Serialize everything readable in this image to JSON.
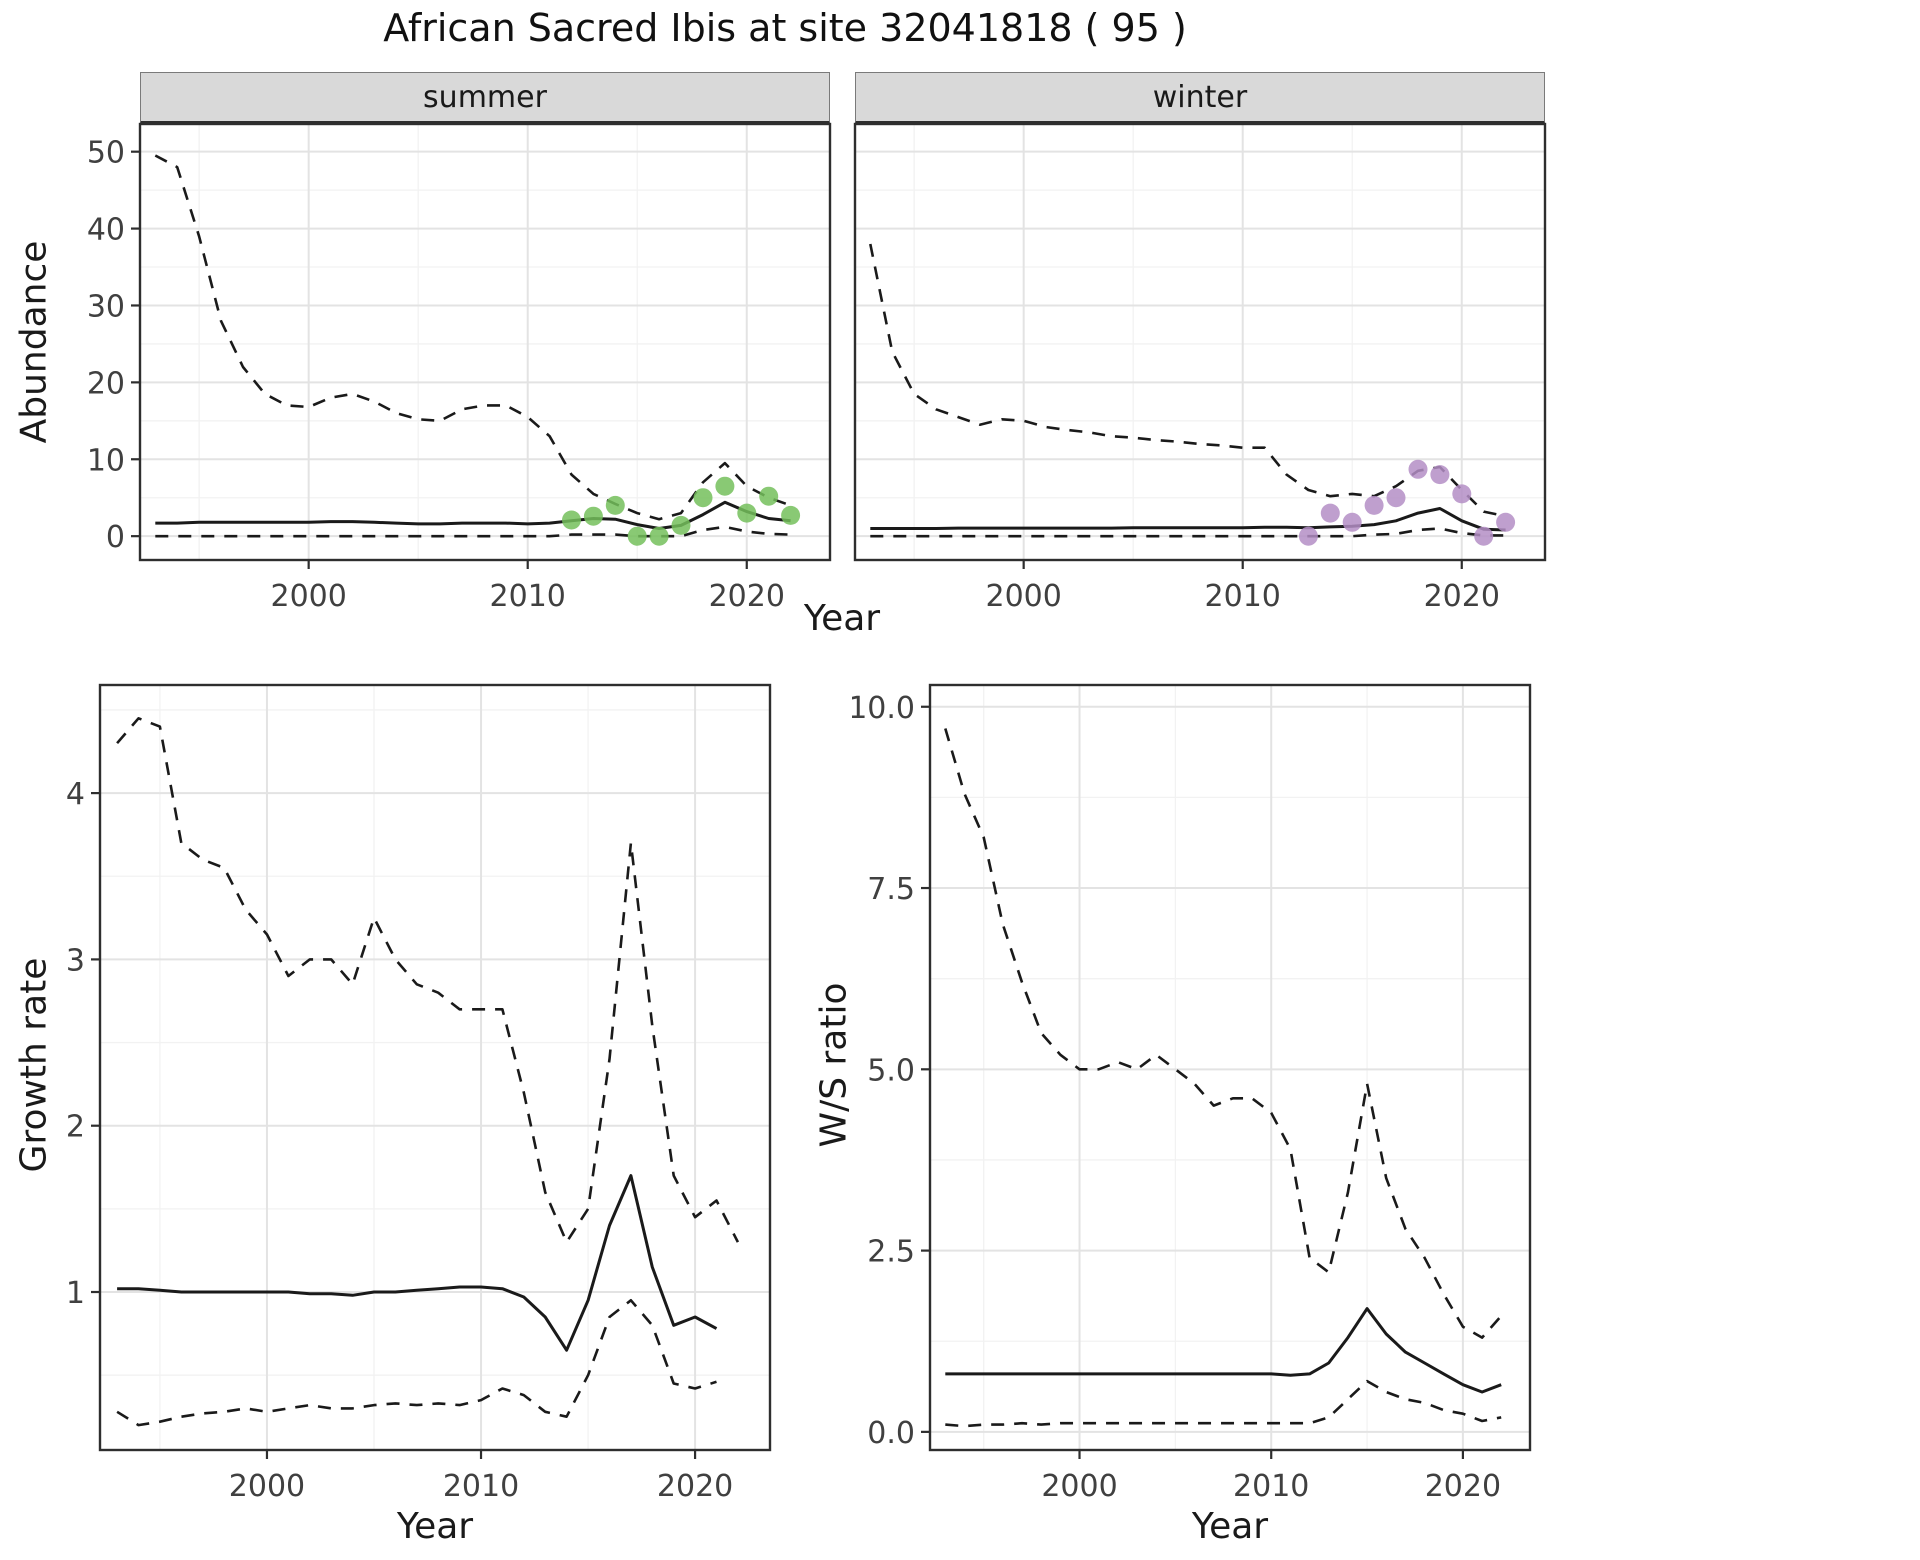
{
  "title": "African Sacred Ibis at site 32041818 ( 95 )",
  "facets": {
    "summer": "summer",
    "winter": "winter"
  },
  "labels": {
    "abundance": "Abundance",
    "year_top": "Year",
    "growth": "Growth rate",
    "ws": "W/S ratio",
    "year_growth": "Year",
    "year_ws": "Year"
  },
  "style": {
    "line": "#1a1a1a",
    "grid_major": "#e3e3e3",
    "grid_minor": "#f2f2f2",
    "panel_border": "#2e2e2e",
    "tick_text": "#404040",
    "strip_bg": "#d9d9d9",
    "summer_points": "#74bf5c",
    "winter_points": "#b48ec6"
  },
  "chart_data": [
    {
      "name": "abundance-summer",
      "type": "line",
      "facet": "summer",
      "xlabel": "Year",
      "ylabel": "Abundance",
      "xlim": [
        1992.3,
        2023.8
      ],
      "ylim": [
        -3.1,
        53.6
      ],
      "xticks": {
        "values": [
          2000,
          2010,
          2020
        ],
        "labels": [
          "2000",
          "2010",
          "2020"
        ],
        "minor": [
          1995,
          2005,
          2015
        ]
      },
      "yticks": {
        "values": [
          0,
          10,
          20,
          30,
          40,
          50
        ],
        "labels": [
          "0",
          "10",
          "20",
          "30",
          "40",
          "50"
        ],
        "minor": [
          5,
          15,
          25,
          35,
          45
        ],
        "show_labels": true
      },
      "series": [
        {
          "name": "upper-ci",
          "kind": "line",
          "dash": true,
          "x": [
            1993,
            1994,
            1995,
            1996,
            1997,
            1998,
            1999,
            2000,
            2001,
            2002,
            2003,
            2004,
            2005,
            2006,
            2007,
            2008,
            2009,
            2010,
            2011,
            2012,
            2013,
            2014,
            2015,
            2016,
            2017,
            2018,
            2019,
            2020,
            2021,
            2022
          ],
          "y": [
            49.5,
            48,
            39,
            28,
            22,
            18.5,
            17,
            16.8,
            18,
            18.5,
            17.5,
            16,
            15.2,
            15,
            16.5,
            17,
            17,
            15.5,
            13,
            8,
            5.5,
            4.2,
            3,
            2.2,
            3,
            7,
            9.5,
            6.5,
            5,
            4
          ]
        },
        {
          "name": "median",
          "kind": "line",
          "dash": false,
          "x": [
            1993,
            1994,
            1995,
            1996,
            1997,
            1998,
            1999,
            2000,
            2001,
            2002,
            2003,
            2004,
            2005,
            2006,
            2007,
            2008,
            2009,
            2010,
            2011,
            2012,
            2013,
            2014,
            2015,
            2016,
            2017,
            2018,
            2019,
            2020,
            2021,
            2022
          ],
          "y": [
            1.7,
            1.7,
            1.8,
            1.8,
            1.8,
            1.8,
            1.8,
            1.8,
            1.9,
            1.9,
            1.8,
            1.7,
            1.6,
            1.6,
            1.7,
            1.7,
            1.7,
            1.6,
            1.7,
            2.0,
            2.3,
            2.2,
            1.5,
            1.0,
            1.4,
            2.8,
            4.4,
            3.2,
            2.3,
            2.0
          ]
        },
        {
          "name": "lower-ci",
          "kind": "line",
          "dash": true,
          "x": [
            1993,
            1994,
            1995,
            1996,
            1997,
            1998,
            1999,
            2000,
            2001,
            2002,
            2003,
            2004,
            2005,
            2006,
            2007,
            2008,
            2009,
            2010,
            2011,
            2012,
            2013,
            2014,
            2015,
            2016,
            2017,
            2018,
            2019,
            2020,
            2021,
            2022
          ],
          "y": [
            0,
            0,
            0,
            0,
            0,
            0,
            0,
            0,
            0,
            0,
            0,
            0,
            0,
            0,
            0,
            0,
            0,
            0,
            0,
            0.2,
            0.2,
            0.2,
            0,
            0,
            0,
            0.8,
            1.2,
            0.6,
            0.3,
            0.2
          ]
        },
        {
          "name": "observed",
          "kind": "points",
          "color": "#74bf5c",
          "x": [
            2012,
            2013,
            2014,
            2015,
            2016,
            2017,
            2018,
            2019,
            2020,
            2021,
            2022
          ],
          "y": [
            2.1,
            2.6,
            4.0,
            0,
            0,
            1.4,
            5.0,
            6.5,
            3.0,
            5.2,
            2.7
          ]
        }
      ]
    },
    {
      "name": "abundance-winter",
      "type": "line",
      "facet": "winter",
      "xlabel": "Year",
      "ylabel": "Abundance",
      "xlim": [
        1992.3,
        2023.8
      ],
      "ylim": [
        -3.1,
        53.6
      ],
      "xticks": {
        "values": [
          2000,
          2010,
          2020
        ],
        "labels": [
          "2000",
          "2010",
          "2020"
        ],
        "minor": [
          1995,
          2005,
          2015
        ]
      },
      "yticks": {
        "values": [
          0,
          10,
          20,
          30,
          40,
          50
        ],
        "labels": [
          "0",
          "10",
          "20",
          "30",
          "40",
          "50"
        ],
        "minor": [
          5,
          15,
          25,
          35,
          45
        ],
        "show_labels": false
      },
      "series": [
        {
          "name": "upper-ci",
          "kind": "line",
          "dash": true,
          "x": [
            1993,
            1994,
            1995,
            1996,
            1997,
            1998,
            1999,
            2000,
            2001,
            2002,
            2003,
            2004,
            2005,
            2006,
            2007,
            2008,
            2009,
            2010,
            2011,
            2012,
            2013,
            2014,
            2015,
            2016,
            2017,
            2018,
            2019,
            2020,
            2021,
            2022
          ],
          "y": [
            38,
            24,
            18.5,
            16.5,
            15.5,
            14.5,
            15.2,
            15,
            14.2,
            13.8,
            13.5,
            13,
            12.8,
            12.5,
            12.3,
            12,
            11.8,
            11.5,
            11.5,
            8,
            6,
            5.2,
            5.5,
            5.2,
            6.5,
            8.5,
            9,
            6,
            3.2,
            2.6
          ]
        },
        {
          "name": "median",
          "kind": "line",
          "dash": false,
          "x": [
            1993,
            1994,
            1995,
            1996,
            1997,
            1998,
            1999,
            2000,
            2001,
            2002,
            2003,
            2004,
            2005,
            2006,
            2007,
            2008,
            2009,
            2010,
            2011,
            2012,
            2013,
            2014,
            2015,
            2016,
            2017,
            2018,
            2019,
            2020,
            2021,
            2022
          ],
          "y": [
            1.0,
            1.0,
            1.0,
            1.0,
            1.05,
            1.05,
            1.05,
            1.05,
            1.05,
            1.05,
            1.05,
            1.05,
            1.1,
            1.1,
            1.1,
            1.1,
            1.1,
            1.1,
            1.15,
            1.15,
            1.1,
            1.2,
            1.3,
            1.5,
            2.0,
            3.0,
            3.6,
            2.0,
            0.9,
            0.8
          ]
        },
        {
          "name": "lower-ci",
          "kind": "line",
          "dash": true,
          "x": [
            1993,
            1994,
            1995,
            1996,
            1997,
            1998,
            1999,
            2000,
            2001,
            2002,
            2003,
            2004,
            2005,
            2006,
            2007,
            2008,
            2009,
            2010,
            2011,
            2012,
            2013,
            2014,
            2015,
            2016,
            2017,
            2018,
            2019,
            2020,
            2021,
            2022
          ],
          "y": [
            0,
            0,
            0,
            0,
            0,
            0,
            0,
            0,
            0,
            0,
            0,
            0,
            0,
            0,
            0,
            0,
            0,
            0,
            0,
            0,
            0,
            0,
            0,
            0.2,
            0.3,
            0.8,
            1.0,
            0.4,
            0.1,
            0.1
          ]
        },
        {
          "name": "observed",
          "kind": "points",
          "color": "#b48ec6",
          "x": [
            2013,
            2014,
            2015,
            2016,
            2017,
            2018,
            2019,
            2020,
            2021,
            2022
          ],
          "y": [
            0,
            3.0,
            1.8,
            4.0,
            5.0,
            8.7,
            8.0,
            5.5,
            0,
            1.8
          ]
        }
      ]
    },
    {
      "name": "growth-rate",
      "type": "line",
      "xlabel": "Year",
      "ylabel": "Growth rate",
      "xlim": [
        1992.2,
        2023.5
      ],
      "ylim": [
        0.05,
        4.65
      ],
      "xticks": {
        "values": [
          2000,
          2010,
          2020
        ],
        "labels": [
          "2000",
          "2010",
          "2020"
        ],
        "minor": [
          1995,
          2005,
          2015
        ]
      },
      "yticks": {
        "values": [
          1,
          2,
          3,
          4
        ],
        "labels": [
          "1",
          "2",
          "3",
          "4"
        ],
        "minor": [
          0.5,
          1.5,
          2.5,
          3.5,
          4.5
        ],
        "show_labels": true
      },
      "series": [
        {
          "name": "upper-ci",
          "kind": "line",
          "dash": true,
          "x": [
            1993,
            1994,
            1995,
            1996,
            1997,
            1998,
            1999,
            2000,
            2001,
            2002,
            2003,
            2004,
            2005,
            2006,
            2007,
            2008,
            2009,
            2010,
            2011,
            2012,
            2013,
            2014,
            2015,
            2016,
            2017,
            2018,
            2019,
            2020,
            2021,
            2022
          ],
          "y": [
            4.3,
            4.45,
            4.4,
            3.7,
            3.6,
            3.55,
            3.3,
            3.15,
            2.9,
            3.0,
            3.0,
            2.85,
            3.25,
            3.0,
            2.85,
            2.8,
            2.7,
            2.7,
            2.7,
            2.2,
            1.6,
            1.3,
            1.5,
            2.4,
            3.7,
            2.6,
            1.7,
            1.45,
            1.55,
            1.3
          ]
        },
        {
          "name": "median",
          "kind": "line",
          "dash": false,
          "x": [
            1993,
            1994,
            1995,
            1996,
            1997,
            1998,
            1999,
            2000,
            2001,
            2002,
            2003,
            2004,
            2005,
            2006,
            2007,
            2008,
            2009,
            2010,
            2011,
            2012,
            2013,
            2014,
            2015,
            2016,
            2017,
            2018,
            2019,
            2020,
            2021
          ],
          "y": [
            1.02,
            1.02,
            1.01,
            1.0,
            1.0,
            1.0,
            1.0,
            1.0,
            1.0,
            0.99,
            0.99,
            0.98,
            1.0,
            1.0,
            1.01,
            1.02,
            1.03,
            1.03,
            1.02,
            0.97,
            0.85,
            0.65,
            0.95,
            1.4,
            1.7,
            1.15,
            0.8,
            0.85,
            0.78
          ]
        },
        {
          "name": "lower-ci",
          "kind": "line",
          "dash": true,
          "x": [
            1993,
            1994,
            1995,
            1996,
            1997,
            1998,
            1999,
            2000,
            2001,
            2002,
            2003,
            2004,
            2005,
            2006,
            2007,
            2008,
            2009,
            2010,
            2011,
            2012,
            2013,
            2014,
            2015,
            2016,
            2017,
            2018,
            2019,
            2020,
            2021
          ],
          "y": [
            0.28,
            0.2,
            0.22,
            0.25,
            0.27,
            0.28,
            0.3,
            0.28,
            0.3,
            0.32,
            0.3,
            0.3,
            0.32,
            0.33,
            0.32,
            0.33,
            0.32,
            0.35,
            0.42,
            0.38,
            0.28,
            0.25,
            0.5,
            0.85,
            0.95,
            0.8,
            0.45,
            0.42,
            0.46
          ]
        }
      ]
    },
    {
      "name": "ws-ratio",
      "type": "line",
      "xlabel": "Year",
      "ylabel": "W/S ratio",
      "xlim": [
        1992.2,
        2023.5
      ],
      "ylim": [
        -0.25,
        10.3
      ],
      "xticks": {
        "values": [
          2000,
          2010,
          2020
        ],
        "labels": [
          "2000",
          "2010",
          "2020"
        ],
        "minor": [
          1995,
          2005,
          2015
        ]
      },
      "yticks": {
        "values": [
          0,
          2.5,
          5,
          7.5,
          10
        ],
        "labels": [
          "0.0",
          "2.5",
          "5.0",
          "7.5",
          "10.0"
        ],
        "minor": [
          1.25,
          3.75,
          6.25,
          8.75
        ],
        "show_labels": true
      },
      "series": [
        {
          "name": "upper-ci",
          "kind": "line",
          "dash": true,
          "x": [
            1993,
            1994,
            1995,
            1996,
            1997,
            1998,
            1999,
            2000,
            2001,
            2002,
            2003,
            2004,
            2005,
            2006,
            2007,
            2008,
            2009,
            2010,
            2011,
            2012,
            2013,
            2014,
            2015,
            2016,
            2017,
            2018,
            2019,
            2020,
            2021,
            2022
          ],
          "y": [
            9.7,
            8.8,
            8.2,
            7.0,
            6.2,
            5.5,
            5.2,
            5.0,
            5.0,
            5.1,
            5.0,
            5.2,
            5.0,
            4.8,
            4.5,
            4.6,
            4.6,
            4.4,
            3.9,
            2.4,
            2.2,
            3.3,
            4.8,
            3.5,
            2.8,
            2.4,
            1.9,
            1.45,
            1.3,
            1.6
          ]
        },
        {
          "name": "median",
          "kind": "line",
          "dash": false,
          "x": [
            1993,
            1994,
            1995,
            1996,
            1997,
            1998,
            1999,
            2000,
            2001,
            2002,
            2003,
            2004,
            2005,
            2006,
            2007,
            2008,
            2009,
            2010,
            2011,
            2012,
            2013,
            2014,
            2015,
            2016,
            2017,
            2018,
            2019,
            2020,
            2021,
            2022
          ],
          "y": [
            0.8,
            0.8,
            0.8,
            0.8,
            0.8,
            0.8,
            0.8,
            0.8,
            0.8,
            0.8,
            0.8,
            0.8,
            0.8,
            0.8,
            0.8,
            0.8,
            0.8,
            0.8,
            0.78,
            0.8,
            0.95,
            1.3,
            1.7,
            1.35,
            1.1,
            0.95,
            0.8,
            0.65,
            0.55,
            0.65
          ]
        },
        {
          "name": "lower-ci",
          "kind": "line",
          "dash": true,
          "x": [
            1993,
            1994,
            1995,
            1996,
            1997,
            1998,
            1999,
            2000,
            2001,
            2002,
            2003,
            2004,
            2005,
            2006,
            2007,
            2008,
            2009,
            2010,
            2011,
            2012,
            2013,
            2014,
            2015,
            2016,
            2017,
            2018,
            2019,
            2020,
            2021,
            2022
          ],
          "y": [
            0.1,
            0.08,
            0.1,
            0.1,
            0.12,
            0.1,
            0.12,
            0.12,
            0.12,
            0.12,
            0.12,
            0.12,
            0.12,
            0.12,
            0.12,
            0.12,
            0.12,
            0.12,
            0.12,
            0.12,
            0.2,
            0.45,
            0.7,
            0.55,
            0.45,
            0.4,
            0.3,
            0.25,
            0.15,
            0.2
          ]
        }
      ]
    }
  ]
}
